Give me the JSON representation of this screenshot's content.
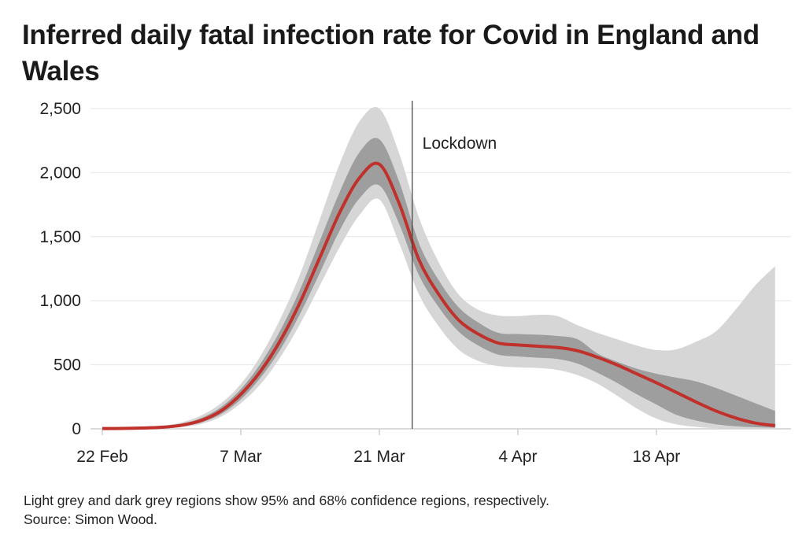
{
  "chart_data": {
    "type": "area",
    "title": "Inferred daily fatal infection rate for Covid in England and Wales",
    "xlabel": "",
    "ylabel": "",
    "ylim": [
      0,
      2500
    ],
    "yticks": [
      0,
      500,
      1000,
      1500,
      2000,
      2500
    ],
    "ytick_labels": [
      "0",
      "500",
      "1,000",
      "1,500",
      "2,000",
      "2,500"
    ],
    "xlim": [
      "22 Feb",
      "30 Apr"
    ],
    "xticks": [
      {
        "day": 0,
        "label": "22 Feb"
      },
      {
        "day": 14,
        "label": "7 Mar"
      },
      {
        "day": 28,
        "label": "21 Mar"
      },
      {
        "day": 42,
        "label": "4 Apr"
      },
      {
        "day": 56,
        "label": "18 Apr"
      }
    ],
    "grid": true,
    "annotation": {
      "label": "Lockdown",
      "date": "24 Mar",
      "day": 31
    },
    "x_days_since_22_feb": [
      0,
      2,
      4,
      6,
      8,
      10,
      12,
      14,
      16,
      18,
      20,
      22,
      24,
      26,
      28,
      30,
      32,
      34,
      36,
      38,
      40,
      42,
      44,
      46,
      48,
      50,
      52,
      54,
      56,
      58,
      60,
      62,
      64,
      66,
      68
    ],
    "series": [
      {
        "role": "median",
        "color": "#c0312b",
        "values": [
          2,
          3,
          6,
          12,
          28,
          65,
          140,
          270,
          450,
          690,
          990,
          1340,
          1690,
          1960,
          2065,
          1760,
          1320,
          1050,
          850,
          740,
          670,
          655,
          645,
          635,
          610,
          560,
          500,
          430,
          360,
          285,
          210,
          140,
          85,
          45,
          25
        ]
      },
      {
        "role": "ci68",
        "color": "#9e9e9e",
        "lower": [
          0,
          1,
          3,
          8,
          20,
          50,
          115,
          230,
          400,
          620,
          900,
          1220,
          1550,
          1800,
          1900,
          1600,
          1200,
          950,
          760,
          650,
          580,
          565,
          555,
          545,
          510,
          440,
          360,
          270,
          190,
          110,
          65,
          35,
          20,
          12,
          8
        ],
        "upper": [
          4,
          6,
          10,
          18,
          38,
          85,
          170,
          310,
          510,
          770,
          1090,
          1470,
          1850,
          2160,
          2260,
          1930,
          1450,
          1160,
          950,
          830,
          750,
          740,
          735,
          725,
          700,
          590,
          525,
          470,
          430,
          400,
          370,
          320,
          260,
          200,
          140
        ]
      },
      {
        "role": "ci95",
        "color": "#d6d6d6",
        "lower": [
          0,
          0,
          1,
          5,
          14,
          38,
          95,
          200,
          350,
          560,
          820,
          1120,
          1420,
          1670,
          1790,
          1450,
          1050,
          800,
          620,
          530,
          490,
          480,
          475,
          460,
          420,
          355,
          260,
          160,
          80,
          35,
          15,
          5,
          2,
          1,
          0
        ],
        "upper": [
          6,
          9,
          15,
          25,
          50,
          105,
          200,
          350,
          570,
          860,
          1210,
          1640,
          2070,
          2400,
          2500,
          2150,
          1650,
          1300,
          1050,
          930,
          885,
          880,
          890,
          880,
          810,
          750,
          700,
          650,
          615,
          620,
          680,
          760,
          930,
          1120,
          1270
        ]
      }
    ]
  },
  "title": "Inferred daily fatal infection rate for Covid in England and Wales",
  "footer": {
    "note": "Light grey and dark grey regions show 95% and 68% confidence regions, respectively.",
    "source": "Source: Simon Wood."
  }
}
